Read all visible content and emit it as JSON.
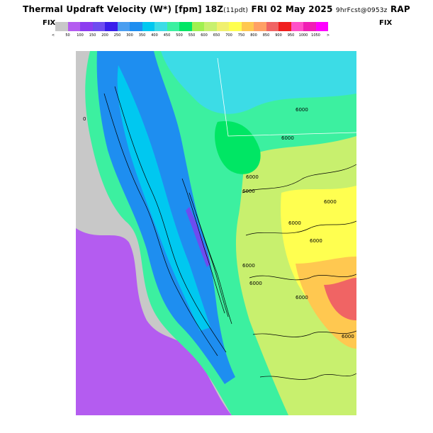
{
  "header": {
    "title_main": "Thermal Updraft Velocity (W*) [fpm] 18Z",
    "title_pdt": "(11pdt)",
    "title_date": "FRI 02 May 2025",
    "title_forecast": "9hrFcst@0953z",
    "title_model": "RAP"
  },
  "scale": {
    "fix_left": "FIX",
    "fix_right": "FIX",
    "left_arrow": "<",
    "right_arrow": ">",
    "labels": [
      "50",
      "100",
      "150",
      "200",
      "250",
      "300",
      "350",
      "400",
      "450",
      "500",
      "550",
      "600",
      "650",
      "700",
      "750",
      "800",
      "850",
      "900",
      "950",
      "1000",
      "1050"
    ],
    "colors": [
      "#c8c8c8",
      "#b45cf0",
      "#8c3cf0",
      "#6e4cf0",
      "#3a1eeb",
      "#4a9ef0",
      "#1e8ef0",
      "#00c8f0",
      "#3cdce6",
      "#3cf0a0",
      "#00e664",
      "#a0f050",
      "#c8f06e",
      "#f0f06e",
      "#ffff50",
      "#ffc850",
      "#ffa064",
      "#f06464",
      "#f01e1e",
      "#ff50c8",
      "#f01eb4",
      "#ff00ff"
    ]
  },
  "map": {
    "contour_labels": [
      "6000",
      "6000",
      "6000",
      "6000",
      "6000",
      "6000",
      "6000",
      "6000",
      "6000",
      "6000",
      "0",
      "6000"
    ]
  }
}
